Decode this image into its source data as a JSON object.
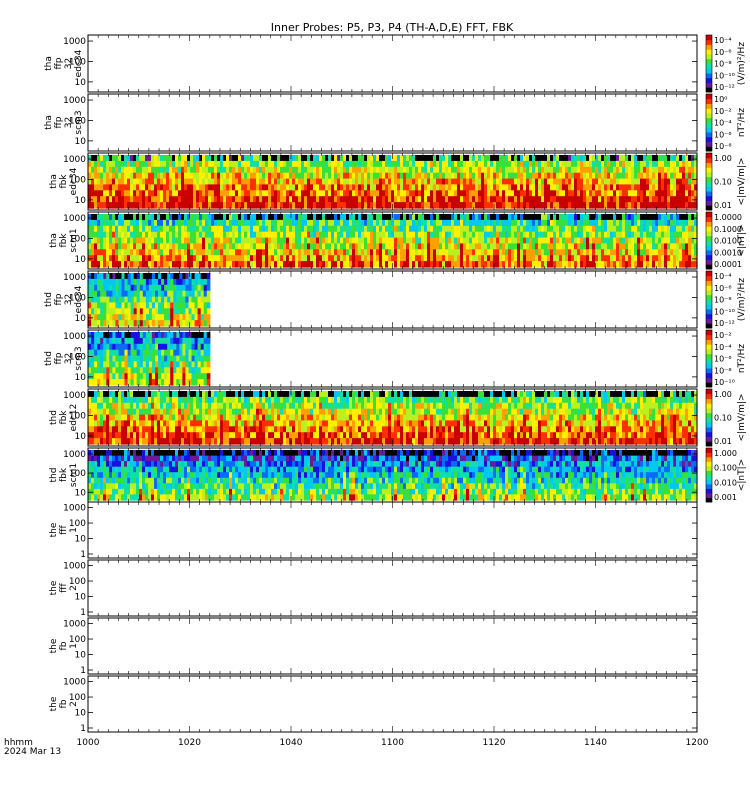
{
  "title": "Inner Probes: P5, P3, P4 (TH-A,D,E) FFT, FBK",
  "time_axis": {
    "ticks": [
      "1000",
      "1020",
      "1040",
      "1100",
      "1120",
      "1140",
      "1200"
    ],
    "unit_label": "hhmm",
    "date_label": "2024 Mar 13"
  },
  "colors": {
    "colormap": [
      "#000000",
      "#6a1b9a",
      "#1a10e0",
      "#0a6cf5",
      "#00c8f0",
      "#10e0a8",
      "#38e038",
      "#b8f020",
      "#fff000",
      "#ffa000",
      "#ff3000",
      "#c80000"
    ],
    "frame": "#000000",
    "background": "#ffffff"
  },
  "chart_data": [
    {
      "type": "heatmap",
      "panel": "tha ffp 32 edc34",
      "ylabel": [
        "tha",
        "ffp",
        "32",
        "edc34"
      ],
      "yticks": [
        "1000",
        "100",
        "10"
      ],
      "colorbar_label": "(V/m)²/Hz",
      "colorbar_ticks": [
        "10⁻⁴",
        "10⁻⁶",
        "10⁻⁸",
        "10⁻¹⁰",
        "10⁻¹²"
      ],
      "coverage": [],
      "level": 0
    },
    {
      "type": "heatmap",
      "panel": "tha ffp 32 scm3",
      "ylabel": [
        "tha",
        "ffp",
        "32",
        "scm3"
      ],
      "yticks": [
        "1000",
        "100",
        "10"
      ],
      "colorbar_label": "nT²/Hz",
      "colorbar_ticks": [
        "10⁰",
        "10⁻²",
        "10⁻⁴",
        "10⁻⁶",
        "10⁻⁸"
      ],
      "coverage": [],
      "level": 0
    },
    {
      "type": "heatmap",
      "panel": "tha fbk edc34",
      "ylabel": [
        "tha",
        "fbk",
        "edc34"
      ],
      "yticks": [
        "1000",
        "100",
        "10"
      ],
      "colorbar_label": "<|mV/m|>",
      "colorbar_ticks": [
        "1.00",
        "0.10",
        "0.01"
      ],
      "coverage": [
        [
          "1000",
          "1200"
        ]
      ],
      "level": 0.55
    },
    {
      "type": "heatmap",
      "panel": "tha fbk scm1",
      "ylabel": [
        "tha",
        "fbk",
        "scm1"
      ],
      "yticks": [
        "1000",
        "100",
        "10"
      ],
      "colorbar_label": "<|nT|>",
      "colorbar_ticks": [
        "1.0000",
        "0.1000",
        "0.0100",
        "0.0010",
        "0.0001"
      ],
      "coverage": [
        [
          "1000",
          "1200"
        ]
      ],
      "level": 0.42
    },
    {
      "type": "heatmap",
      "panel": "thd ffp 32 edc34",
      "ylabel": [
        "thd",
        "ffp",
        "32",
        "edc34"
      ],
      "yticks": [
        "1000",
        "100",
        "10"
      ],
      "colorbar_label": "(V/m)²/Hz",
      "colorbar_ticks": [
        "10⁻⁴",
        "10⁻⁶",
        "10⁻⁸",
        "10⁻¹⁰",
        "10⁻¹²"
      ],
      "coverage": [
        [
          "1000",
          "1024"
        ]
      ],
      "level": 0.3
    },
    {
      "type": "heatmap",
      "panel": "thd ffp 32 scm3",
      "ylabel": [
        "thd",
        "ffp",
        "32",
        "scm3"
      ],
      "yticks": [
        "1000",
        "100",
        "10"
      ],
      "colorbar_label": "nT²/Hz",
      "colorbar_ticks": [
        "10⁻²",
        "10⁻⁴",
        "10⁻⁶",
        "10⁻⁸",
        "10⁻¹⁰"
      ],
      "coverage": [
        [
          "1000",
          "1024"
        ]
      ],
      "level": 0.28
    },
    {
      "type": "heatmap",
      "panel": "thd fbk edc12",
      "ylabel": [
        "thd",
        "fbk",
        "edc12"
      ],
      "yticks": [
        "1000",
        "100",
        "10"
      ],
      "colorbar_label": "<|mV/m|>",
      "colorbar_ticks": [
        "1.00",
        "0.10",
        "0.01"
      ],
      "coverage": [
        [
          "1000",
          "1200"
        ]
      ],
      "level": 0.5
    },
    {
      "type": "heatmap",
      "panel": "thd fbk scm1",
      "ylabel": [
        "thd",
        "fbk",
        "scm1"
      ],
      "yticks": [
        "1000",
        "100",
        "10"
      ],
      "colorbar_label": "<|nT|>",
      "colorbar_ticks": [
        "1.000",
        "0.100",
        "0.010",
        "0.001"
      ],
      "coverage": [
        [
          "1000",
          "1200"
        ]
      ],
      "level": 0.2
    },
    {
      "type": "heatmap",
      "panel": "the fff 1",
      "ylabel": [
        "the",
        "fff",
        "1"
      ],
      "yticks": [
        "1000",
        "100",
        "10",
        "1"
      ],
      "colorbar_label": "",
      "colorbar_ticks": [],
      "coverage": [],
      "level": 0
    },
    {
      "type": "heatmap",
      "panel": "the fff 2",
      "ylabel": [
        "the",
        "fff",
        "2"
      ],
      "yticks": [
        "1000",
        "100",
        "10",
        "1"
      ],
      "colorbar_label": "",
      "colorbar_ticks": [],
      "coverage": [],
      "level": 0
    },
    {
      "type": "heatmap",
      "panel": "the fb 1",
      "ylabel": [
        "the",
        "fb",
        "1"
      ],
      "yticks": [
        "1000",
        "100",
        "10",
        "1"
      ],
      "colorbar_label": "",
      "colorbar_ticks": [],
      "coverage": [],
      "level": 0
    },
    {
      "type": "heatmap",
      "panel": "the fb 2",
      "ylabel": [
        "the",
        "fb",
        "2"
      ],
      "yticks": [
        "1000",
        "100",
        "10",
        "1"
      ],
      "colorbar_label": "",
      "colorbar_ticks": [],
      "coverage": [],
      "level": 0
    }
  ]
}
